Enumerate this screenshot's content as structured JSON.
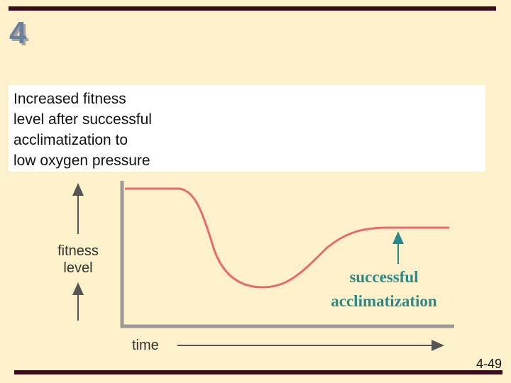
{
  "slide_number": "4",
  "caption": {
    "lines": [
      "Increased fitness",
      "level after successful",
      "acclimatization to",
      "low oxygen pressure"
    ]
  },
  "y_axis_label": {
    "lines": [
      "fitness",
      "level"
    ]
  },
  "x_axis_label": "time",
  "annotation": {
    "lines": [
      "successful",
      "acclimatization"
    ]
  },
  "page_number": "4-49"
}
